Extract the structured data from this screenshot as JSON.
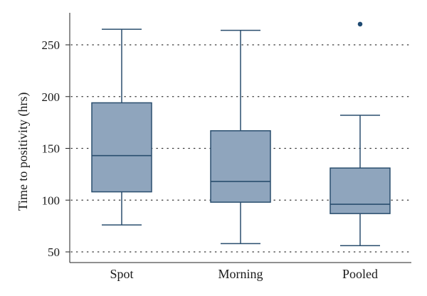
{
  "chart_data": {
    "type": "boxplot",
    "title": "",
    "xlabel": "",
    "ylabel": "Time to positivity (hrs)",
    "ylim": [
      45,
      280
    ],
    "yticks": [
      50,
      100,
      150,
      200,
      250
    ],
    "grid": "horizontal dotted",
    "categories": [
      "Spot",
      "Morning",
      "Pooled"
    ],
    "boxes": [
      {
        "category": "Spot",
        "whisker_low": 76,
        "q1": 108,
        "median": 143,
        "q3": 194,
        "whisker_high": 265,
        "outliers": []
      },
      {
        "category": "Morning",
        "whisker_low": 58,
        "q1": 98,
        "median": 118,
        "q3": 167,
        "whisker_high": 264,
        "outliers": []
      },
      {
        "category": "Pooled",
        "whisker_low": 56,
        "q1": 87,
        "median": 96,
        "q3": 131,
        "whisker_high": 182,
        "outliers": [
          270
        ]
      }
    ],
    "colors": {
      "box_fill": "#8fa5bd",
      "box_stroke": "#2a4e6e",
      "outlier": "#1f4a72",
      "grid": "#333333",
      "axis": "#222222"
    }
  }
}
